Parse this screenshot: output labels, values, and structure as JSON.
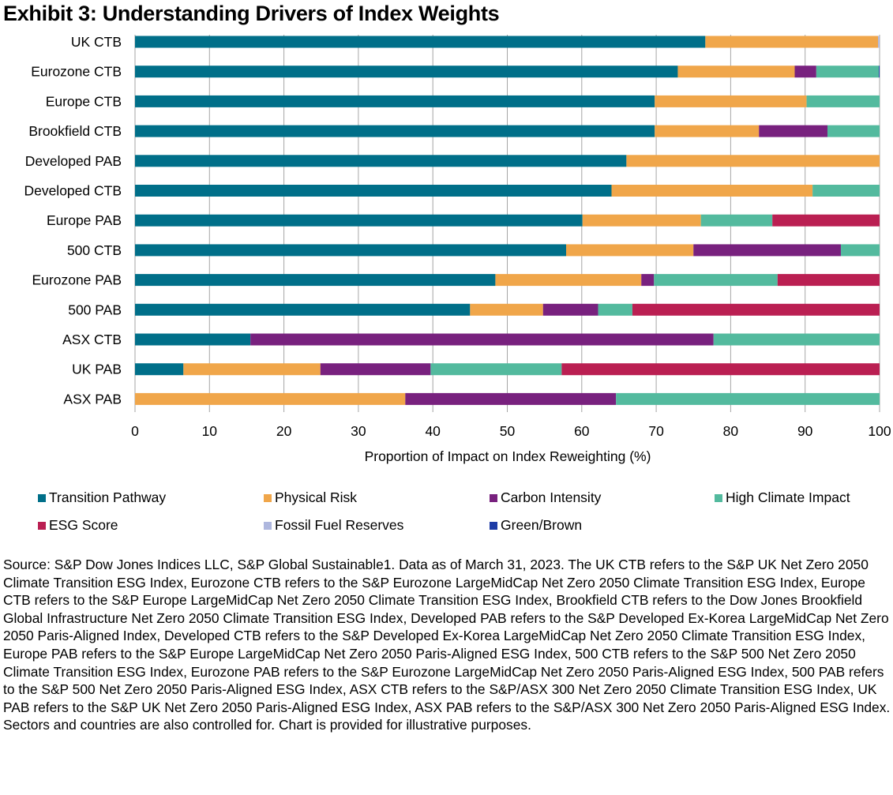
{
  "title": "Exhibit 3: Understanding Drivers of Index Weights",
  "chart_data": {
    "type": "bar",
    "orientation": "horizontal",
    "stacked": true,
    "title": "Exhibit 3: Understanding Drivers of Index Weights",
    "xlabel": "Proportion of Impact on Index Reweighting (%)",
    "ylabel": "",
    "xlim": [
      0,
      100
    ],
    "xticks": [
      "0",
      "10",
      "20",
      "30",
      "40",
      "50",
      "60",
      "70",
      "80",
      "90",
      "100"
    ],
    "grid": "vertical",
    "legend_position": "bottom",
    "categories": [
      "UK CTB",
      "Eurozone CTB",
      "Europe CTB",
      "Brookfield CTB",
      "Developed PAB",
      "Developed CTB",
      "Europe PAB",
      "500 CTB",
      "Eurozone PAB",
      "500 PAB",
      "ASX CTB",
      "UK PAB",
      "ASX PAB"
    ],
    "series": [
      {
        "name": "Transition Pathway",
        "color": "#006F89",
        "values": [
          76.6,
          72.9,
          69.8,
          69.8,
          66.0,
          64.0,
          60.1,
          57.9,
          48.4,
          45.0,
          15.5,
          6.5,
          0
        ]
      },
      {
        "name": "Physical Risk",
        "color": "#F0A64A",
        "values": [
          23.2,
          15.7,
          20.4,
          14.0,
          34.0,
          27.0,
          15.9,
          17.1,
          19.6,
          9.8,
          0,
          18.4,
          36.3
        ]
      },
      {
        "name": "Carbon Intensity",
        "color": "#78217E",
        "values": [
          0,
          2.9,
          0,
          9.2,
          0,
          0,
          0,
          19.8,
          1.7,
          7.4,
          62.2,
          14.8,
          28.3
        ]
      },
      {
        "name": "High Climate Impact",
        "color": "#53BA9E",
        "values": [
          0,
          8.4,
          9.8,
          7.0,
          0,
          9.0,
          9.6,
          5.2,
          16.6,
          4.6,
          22.3,
          17.6,
          35.4
        ]
      },
      {
        "name": "ESG Score",
        "color": "#BA1F52",
        "values": [
          0,
          0,
          0,
          0,
          0,
          0,
          14.4,
          0,
          13.7,
          33.2,
          0,
          42.7,
          0
        ]
      },
      {
        "name": "Fossil Fuel Reserves",
        "color": "#AEB7DE",
        "values": [
          0.2,
          0,
          0,
          0,
          0,
          0,
          0,
          0,
          0,
          0,
          0,
          0,
          0
        ]
      },
      {
        "name": "Green/Brown",
        "color": "#1D3BA6",
        "values": [
          0,
          0.1,
          0,
          0,
          0,
          0,
          0,
          0,
          0,
          0,
          0,
          0,
          0
        ]
      }
    ]
  },
  "source_note": "Source: S&P Dow Jones Indices LLC, S&P Global Sustainable1. Data as of March 31, 2023. The UK CTB refers to the S&P UK Net Zero 2050 Climate Transition ESG Index, Eurozone CTB refers to the S&P Eurozone LargeMidCap Net Zero 2050 Climate Transition ESG Index, Europe CTB refers to the S&P Europe LargeMidCap Net Zero 2050 Climate Transition ESG Index, Brookfield CTB refers to the Dow Jones Brookfield Global Infrastructure Net Zero 2050 Climate Transition ESG Index, Developed PAB refers to the S&P Developed Ex-Korea LargeMidCap Net Zero 2050 Paris-Aligned Index, Developed CTB refers to the S&P Developed Ex-Korea LargeMidCap Net Zero 2050 Climate Transition ESG Index, Europe PAB refers to the S&P Europe LargeMidCap Net Zero 2050 Paris-Aligned ESG Index, 500 CTB refers to the S&P 500 Net Zero 2050 Climate Transition ESG Index, Eurozone PAB refers to the S&P Eurozone LargeMidCap Net Zero 2050 Paris-Aligned ESG Index, 500 PAB refers to the S&P 500 Net Zero 2050 Paris-Aligned ESG Index, ASX CTB refers to the S&P/ASX 300 Net Zero 2050 Climate Transition ESG Index, UK PAB refers to the S&P UK Net Zero 2050 Paris-Aligned ESG Index, ASX PAB refers to the S&P/ASX 300 Net Zero 2050 Paris-Aligned ESG Index. Sectors and countries are also controlled for. Chart is provided for illustrative purposes."
}
